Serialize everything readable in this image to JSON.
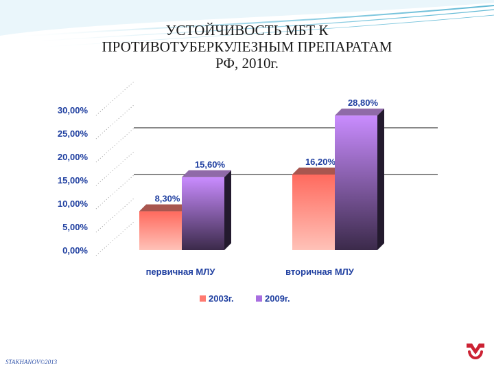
{
  "slide": {
    "title_lines": [
      "УСТОЙЧИВОСТЬ МБТ К",
      "ПРОТИВОТУБЕРКУЛЕЗНЫМ ПРЕПАРАТАМ",
      "РФ, 2010г."
    ],
    "footer": "STAKHANOV©2013",
    "logo_icon": "m-logo-icon",
    "accent_color": "#cc2233"
  },
  "chart_data": {
    "type": "bar",
    "title": "УСТОЙЧИВОСТЬ МБТ К ПРОТИВОТУБЕРКУЛЕЗНЫМ ПРЕПАРАТАМ РФ, 2010г.",
    "categories": [
      "первичная МЛУ",
      "вторичная МЛУ"
    ],
    "series": [
      {
        "name": "2003г.",
        "values": [
          8.3,
          16.2
        ],
        "labels": [
          "8,30%",
          "16,20%"
        ],
        "color": "#ff7a70"
      },
      {
        "name": "2009г.",
        "values": [
          15.6,
          28.8
        ],
        "labels": [
          "15,60%",
          "28,80%"
        ],
        "color": "#c98cff"
      }
    ],
    "ylim": [
      0,
      30
    ],
    "yticks": [
      "0,00%",
      "5,00%",
      "10,00%",
      "15,00%",
      "20,00%",
      "25,00%",
      "30,00%"
    ],
    "grid": true,
    "legend": "bottom",
    "xlabel": "",
    "ylabel": ""
  }
}
